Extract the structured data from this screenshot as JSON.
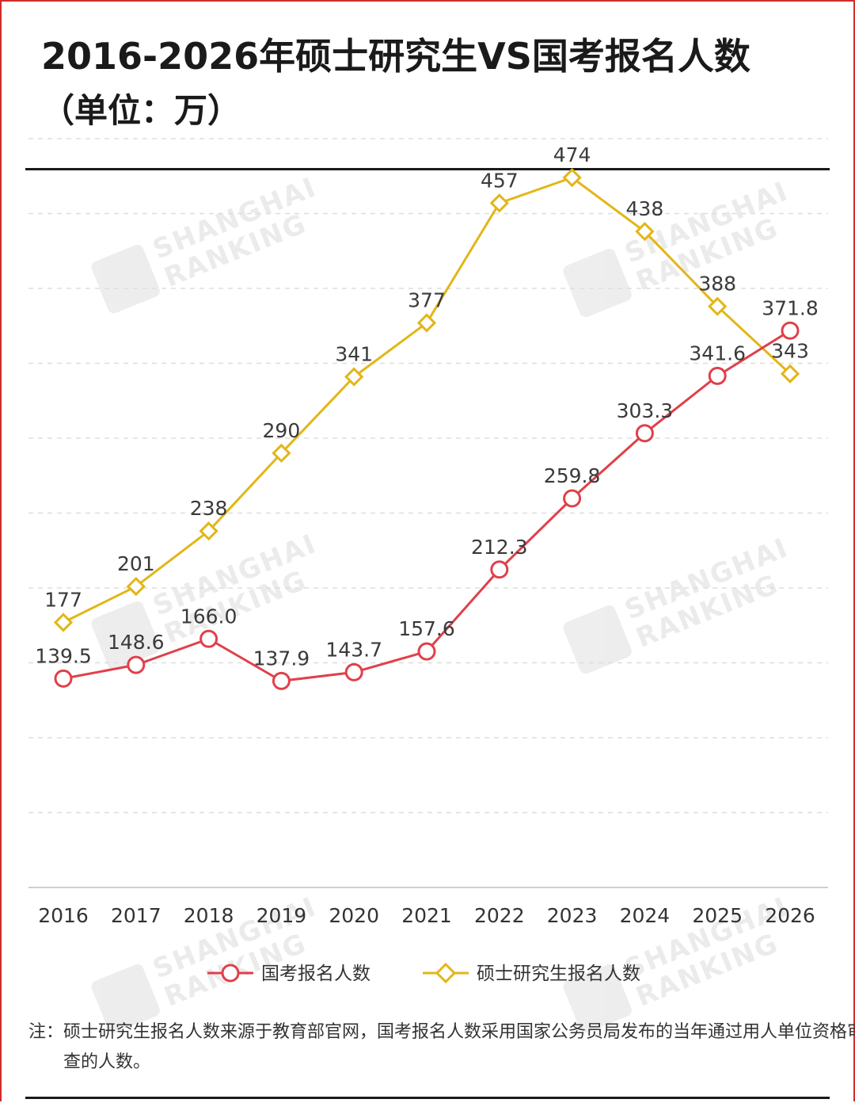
{
  "header": {
    "title": "2016-2026年硕士研究生VS国考报名人数",
    "subtitle": "（单位：万）"
  },
  "watermark": {
    "line1": "SHANGHAI",
    "line2": "RANKING"
  },
  "note": "注：硕士研究生报名人数来源于教育部官网，国考报名人数采用国家公务员局发布的当年通过用人单位资格审查的人数。",
  "colors": {
    "frame": "#d22c2c",
    "series_guokao": "#e0404a",
    "series_master": "#e2b618",
    "grid": "#dddddd"
  },
  "chart_data": {
    "type": "line",
    "categories": [
      "2016",
      "2017",
      "2018",
      "2019",
      "2020",
      "2021",
      "2022",
      "2023",
      "2024",
      "2025",
      "2026"
    ],
    "series": [
      {
        "name": "国考报名人数",
        "marker": "circle",
        "color": "#e0404a",
        "values": [
          139.5,
          148.6,
          166.0,
          137.9,
          143.7,
          157.6,
          212.3,
          259.8,
          303.3,
          341.6,
          371.8
        ],
        "labels": [
          "139.5",
          "148.6",
          "166.0",
          "137.9",
          "143.7",
          "157.6",
          "212.3",
          "259.8",
          "303.3",
          "341.6",
          "371.8"
        ]
      },
      {
        "name": "硕士研究生报名人数",
        "marker": "diamond",
        "color": "#e2b618",
        "values": [
          177,
          201,
          238,
          290,
          341,
          377,
          457,
          474,
          438,
          388,
          343
        ],
        "labels": [
          "177",
          "201",
          "238",
          "290",
          "341",
          "377",
          "457",
          "474",
          "438",
          "388",
          "343"
        ]
      }
    ],
    "ylim": [
      0,
      500
    ],
    "grid": true,
    "legend_position": "bottom"
  }
}
